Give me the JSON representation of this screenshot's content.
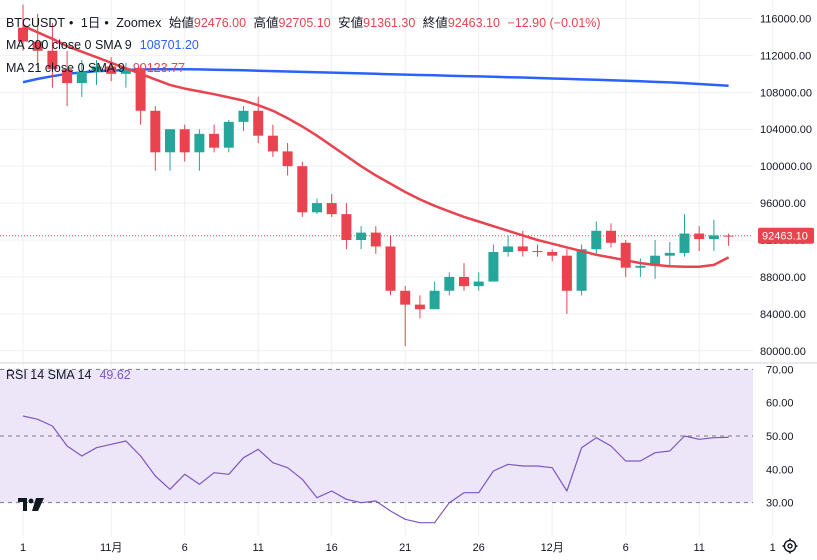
{
  "header": {
    "symbol": "BTCUSDT",
    "interval": "1日",
    "exchange": "Zoomex",
    "open_label": "始値",
    "open": "92476.00",
    "high_label": "高値",
    "high": "92705.10",
    "low_label": "安値",
    "low": "91361.30",
    "close_label": "終値",
    "close": "92463.10",
    "change": "−12.90 (−0.01%)"
  },
  "legend": {
    "ma200_label": "MA 200 close 0 SMA 9",
    "ma200_value": "108701.20",
    "ma21_label": "MA 21 close 0 SMA 9",
    "ma21_value": "90123.77",
    "rsi_label": "RSI 14 SMA 14",
    "rsi_value": "49.62"
  },
  "last_price_badge": "92463.10",
  "colors": {
    "up": "#26a69a",
    "down": "#e8434f",
    "ma200": "#2962ff",
    "ma21": "#e8434f",
    "rsi": "#7e57c2",
    "rsi_band": "#ece6f8",
    "grid": "#eef0f3",
    "text": "#131722"
  },
  "chart_data": [
    {
      "type": "candlestick",
      "title": "BTCUSDT 1日 Zoomex",
      "price_ticks": [
        "116000.00",
        "112000.00",
        "108000.00",
        "104000.00",
        "100000.00",
        "96000.00",
        "92000.00",
        "88000.00",
        "84000.00",
        "80000.00"
      ],
      "price_tick_values": [
        116000,
        112000,
        108000,
        104000,
        100000,
        96000,
        92000,
        88000,
        84000,
        80000
      ],
      "ylim": [
        79000,
        118000
      ],
      "x_ticks": [
        "1",
        "11月",
        "6",
        "11",
        "16",
        "21",
        "26",
        "12月",
        "6",
        "11",
        "1"
      ],
      "x_tick_indices": [
        0,
        6,
        11,
        16,
        21,
        26,
        31,
        36,
        41,
        46,
        51
      ],
      "candles": [
        {
          "o": 115000,
          "h": 117500,
          "l": 112500,
          "c": 113500
        },
        {
          "o": 113500,
          "h": 116500,
          "l": 110500,
          "c": 112500
        },
        {
          "o": 112500,
          "h": 115500,
          "l": 108500,
          "c": 110500
        },
        {
          "o": 110500,
          "h": 112500,
          "l": 106500,
          "c": 109000
        },
        {
          "o": 109000,
          "h": 111500,
          "l": 107500,
          "c": 110200
        },
        {
          "o": 110200,
          "h": 111500,
          "l": 108800,
          "c": 110800
        },
        {
          "o": 110800,
          "h": 111800,
          "l": 109200,
          "c": 110000
        },
        {
          "o": 110000,
          "h": 111200,
          "l": 108500,
          "c": 110600
        },
        {
          "o": 110600,
          "h": 111000,
          "l": 104500,
          "c": 106000
        },
        {
          "o": 106000,
          "h": 106500,
          "l": 99500,
          "c": 101500
        },
        {
          "o": 101500,
          "h": 104000,
          "l": 99500,
          "c": 104000
        },
        {
          "o": 104000,
          "h": 104500,
          "l": 100500,
          "c": 101500
        },
        {
          "o": 101500,
          "h": 104000,
          "l": 99500,
          "c": 103500
        },
        {
          "o": 103500,
          "h": 104500,
          "l": 101500,
          "c": 102000
        },
        {
          "o": 102000,
          "h": 105000,
          "l": 101500,
          "c": 104800
        },
        {
          "o": 104800,
          "h": 106500,
          "l": 103800,
          "c": 106000
        },
        {
          "o": 106000,
          "h": 107500,
          "l": 102500,
          "c": 103300
        },
        {
          "o": 103300,
          "h": 104500,
          "l": 101000,
          "c": 101600
        },
        {
          "o": 101600,
          "h": 102500,
          "l": 99000,
          "c": 100000
        },
        {
          "o": 100000,
          "h": 100500,
          "l": 94500,
          "c": 95000
        },
        {
          "o": 95000,
          "h": 96500,
          "l": 94800,
          "c": 96000
        },
        {
          "o": 96000,
          "h": 97000,
          "l": 94500,
          "c": 94800
        },
        {
          "o": 94800,
          "h": 96000,
          "l": 91000,
          "c": 92000
        },
        {
          "o": 92000,
          "h": 93500,
          "l": 91000,
          "c": 92800
        },
        {
          "o": 92800,
          "h": 93500,
          "l": 90500,
          "c": 91300
        },
        {
          "o": 91300,
          "h": 92500,
          "l": 86000,
          "c": 86500
        },
        {
          "o": 86500,
          "h": 87000,
          "l": 80500,
          "c": 85000
        },
        {
          "o": 85000,
          "h": 86000,
          "l": 83500,
          "c": 84500
        },
        {
          "o": 84500,
          "h": 87500,
          "l": 84500,
          "c": 86500
        },
        {
          "o": 86500,
          "h": 88500,
          "l": 86000,
          "c": 88000
        },
        {
          "o": 88000,
          "h": 89500,
          "l": 86500,
          "c": 87000
        },
        {
          "o": 87000,
          "h": 88500,
          "l": 86500,
          "c": 87500
        },
        {
          "o": 87500,
          "h": 91500,
          "l": 87500,
          "c": 90700
        },
        {
          "o": 90700,
          "h": 92500,
          "l": 90200,
          "c": 91300
        },
        {
          "o": 91300,
          "h": 93000,
          "l": 90200,
          "c": 90800
        },
        {
          "o": 90800,
          "h": 91500,
          "l": 90200,
          "c": 90700
        },
        {
          "o": 90700,
          "h": 91000,
          "l": 89700,
          "c": 90300
        },
        {
          "o": 90300,
          "h": 91000,
          "l": 84000,
          "c": 86500
        },
        {
          "o": 86500,
          "h": 91500,
          "l": 86000,
          "c": 91000
        },
        {
          "o": 91000,
          "h": 94000,
          "l": 90500,
          "c": 93000
        },
        {
          "o": 93000,
          "h": 93800,
          "l": 91200,
          "c": 91700
        },
        {
          "o": 91700,
          "h": 92000,
          "l": 88000,
          "c": 89000
        },
        {
          "o": 89000,
          "h": 90000,
          "l": 88000,
          "c": 89200
        },
        {
          "o": 89200,
          "h": 92000,
          "l": 87800,
          "c": 90300
        },
        {
          "o": 90300,
          "h": 91800,
          "l": 89200,
          "c": 90600
        },
        {
          "o": 90600,
          "h": 94800,
          "l": 90200,
          "c": 92700
        },
        {
          "o": 92700,
          "h": 93500,
          "l": 90800,
          "c": 92100
        },
        {
          "o": 92100,
          "h": 94200,
          "l": 90800,
          "c": 92500
        },
        {
          "o": 92476,
          "h": 92705,
          "l": 91361,
          "c": 92463
        }
      ],
      "series": [
        {
          "name": "MA 200",
          "values": [
            109100,
            109450,
            109750,
            110000,
            110150,
            110300,
            110350,
            110420,
            110470,
            110490,
            110500,
            110500,
            110480,
            110450,
            110420,
            110380,
            110340,
            110300,
            110250,
            110210,
            110170,
            110130,
            110090,
            110050,
            110000,
            109960,
            109920,
            109880,
            109840,
            109800,
            109760,
            109720,
            109680,
            109640,
            109600,
            109550,
            109500,
            109450,
            109400,
            109350,
            109300,
            109250,
            109200,
            109130,
            109070,
            109000,
            108900,
            108800,
            108700
          ]
        },
        {
          "name": "MA 21",
          "values": [
            115200,
            114500,
            113800,
            113000,
            112400,
            111800,
            111200,
            110600,
            110000,
            109400,
            108800,
            108400,
            108100,
            107800,
            107450,
            107100,
            106600,
            106000,
            105200,
            104300,
            103300,
            102200,
            101100,
            100000,
            99000,
            98100,
            97200,
            96400,
            95700,
            95100,
            94500,
            94000,
            93500,
            93000,
            92500,
            92000,
            91600,
            91200,
            90800,
            90400,
            90100,
            89800,
            89500,
            89300,
            89150,
            89100,
            89100,
            89300,
            90120
          ]
        }
      ]
    },
    {
      "type": "line",
      "title": "RSI 14 SMA 14",
      "y_ticks": [
        "70.00",
        "60.00",
        "50.00",
        "40.00",
        "30.00"
      ],
      "y_tick_values": [
        70,
        60,
        50,
        40,
        30
      ],
      "ylim": [
        20,
        71
      ],
      "band": [
        30,
        70
      ],
      "series": [
        {
          "name": "RSI",
          "values": [
            56,
            55,
            53,
            47,
            44,
            46.5,
            47.5,
            48.5,
            44,
            38,
            34,
            38.5,
            35.5,
            39,
            38.5,
            43.5,
            46,
            42,
            40.5,
            37,
            31.5,
            33.5,
            31,
            30,
            30.5,
            27.5,
            25,
            24,
            24,
            30,
            33,
            33,
            39.5,
            41.5,
            41,
            41,
            40.5,
            33.5,
            46.5,
            49.5,
            47,
            42.5,
            42.5,
            45,
            45.5,
            50,
            49,
            49.5,
            49.6
          ]
        }
      ]
    }
  ]
}
